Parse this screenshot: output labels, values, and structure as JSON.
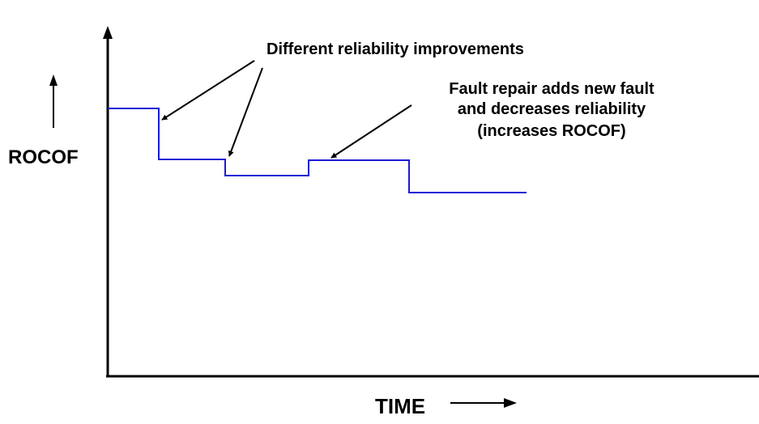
{
  "annotations": {
    "improvements": "Different reliability improvements",
    "fault_line1": "Fault repair adds new fault",
    "fault_line2": "and decreases reliability",
    "fault_line3": "(increases ROCOF)"
  },
  "axes": {
    "y_label": "ROCOF",
    "x_label": "TIME"
  },
  "colors": {
    "curve": "#1a1ad6",
    "ink": "#000000"
  },
  "icons": {
    "y_direction": "up-arrow-icon",
    "x_direction": "right-arrow-icon"
  }
}
